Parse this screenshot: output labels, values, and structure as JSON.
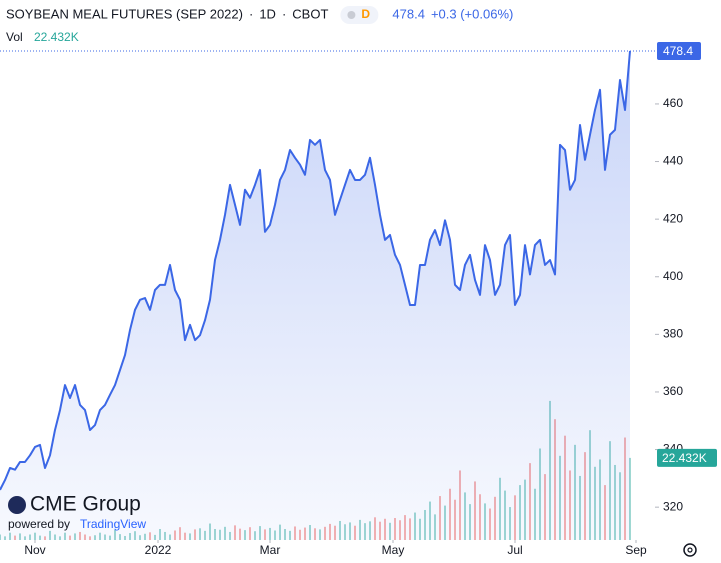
{
  "chart_data": {
    "type": "area",
    "title": "SOYBEAN MEAL FUTURES (SEP 2022)",
    "interval": "1D",
    "exchange": "CBOT",
    "badge": "D",
    "change": "+0.3 (+0.06%)",
    "logo": "CME Group",
    "powered_by": "powered by",
    "provider": "TradingView",
    "color": "#3b67e6",
    "values": [
      326,
      329.4,
      333.6,
      333,
      335.7,
      335.7,
      338,
      340.9,
      341.6,
      333.6,
      338,
      346.8,
      353.7,
      362.4,
      357.9,
      362.4,
      355.5,
      353.7,
      346.8,
      348.5,
      353.7,
      355.5,
      359,
      362.4,
      367.6,
      372.8,
      381.5,
      388.5,
      392,
      392.6,
      388.5,
      395.4,
      397.2,
      397.2,
      404.1,
      395.4,
      392,
      378,
      383.3,
      378,
      379.7,
      384.9,
      392,
      405.8,
      412.8,
      421.5,
      431.9,
      425,
      418,
      430.2,
      427.4,
      431.9,
      437.1,
      415.6,
      418,
      425,
      433.6,
      437.1,
      444,
      441.3,
      438.9,
      435.4,
      447.5,
      445.8,
      447.5,
      437.1,
      433.6,
      421.5,
      426.7,
      431.9,
      437.1,
      433.6,
      433.6,
      435.4,
      441.3,
      431.9,
      421.5,
      412.8,
      414.5,
      407.6,
      404.1,
      397.2,
      390.2,
      390.2,
      404.1,
      404.1,
      412.8,
      416.2,
      411,
      419.6,
      412.8,
      397.2,
      395.4,
      404.1,
      407.6,
      398.9,
      393.7,
      411,
      405.8,
      393.7,
      397.2,
      411,
      414.5,
      390.2,
      393.7,
      411,
      400.8,
      411,
      412.8,
      404.1,
      405.8,
      400.8,
      445.8,
      444,
      430.2,
      433.6,
      452.7,
      440.6,
      449.3,
      457.9,
      464.9,
      437.1,
      449.3,
      451,
      468.3,
      457.9,
      478.4
    ],
    "xlim": [
      0,
      131
    ],
    "xticks": [
      {
        "value": 7,
        "label": "Nov"
      },
      {
        "value": 31.6,
        "label": "2022"
      },
      {
        "value": 54,
        "label": "Mar"
      },
      {
        "value": 78.6,
        "label": "May"
      },
      {
        "value": 103,
        "label": "Jul"
      },
      {
        "value": 127.2,
        "label": "Sep"
      }
    ],
    "ylim": [
      308.6,
      482.2
    ],
    "yticks": [
      320,
      340,
      360,
      380,
      400,
      420,
      440,
      460
    ],
    "volume": {
      "name": "Vol",
      "last_label": "22.432K",
      "up_color": "#9fd8d2",
      "down_color": "#f7b2b0",
      "tag_color": "#26a69a",
      "lim": [
        0,
        136.6
      ],
      "values": [
        1.5,
        1,
        2,
        1.2,
        1.8,
        1,
        1.5,
        2,
        1.2,
        1,
        2.5,
        1.5,
        1,
        2,
        1.2,
        1.8,
        2.2,
        1.5,
        1,
        1.3,
        2,
        1.5,
        1.2,
        2.8,
        1.6,
        1.1,
        1.9,
        2.4,
        1.3,
        1.7,
        2.1,
        1.4,
        3,
        2.2,
        1.5,
        2.6,
        3.5,
        2,
        1.8,
        2.9,
        3.2,
        2.5,
        4.5,
        3,
        2.8,
        3.6,
        2.2,
        4,
        3.1,
        2.7,
        3.5,
        2.4,
        3.8,
        2.9,
        3.3,
        2.6,
        4.2,
        3,
        2.5,
        3.7,
        2.8,
        3.4,
        4.1,
        3.2,
        2.9,
        3.6,
        4.4,
        3.9,
        5.2,
        4.3,
        4.8,
        3.9,
        5.5,
        4.6,
        5.1,
        6.2,
        5,
        5.8,
        4.7,
        6,
        5.4,
        6.8,
        5.9,
        7.5,
        5.8,
        8.2,
        10.5,
        7,
        12,
        9.4,
        14,
        11,
        19,
        13,
        9.8,
        16,
        12.5,
        10,
        8.6,
        11.8,
        17,
        13.5,
        9,
        12.2,
        15,
        16.5,
        21,
        14,
        25,
        18,
        38,
        33,
        23,
        28.5,
        19,
        26,
        17.5,
        24,
        30,
        20,
        22,
        15,
        27,
        20.5,
        18.5,
        28,
        22.432
      ]
    }
  }
}
